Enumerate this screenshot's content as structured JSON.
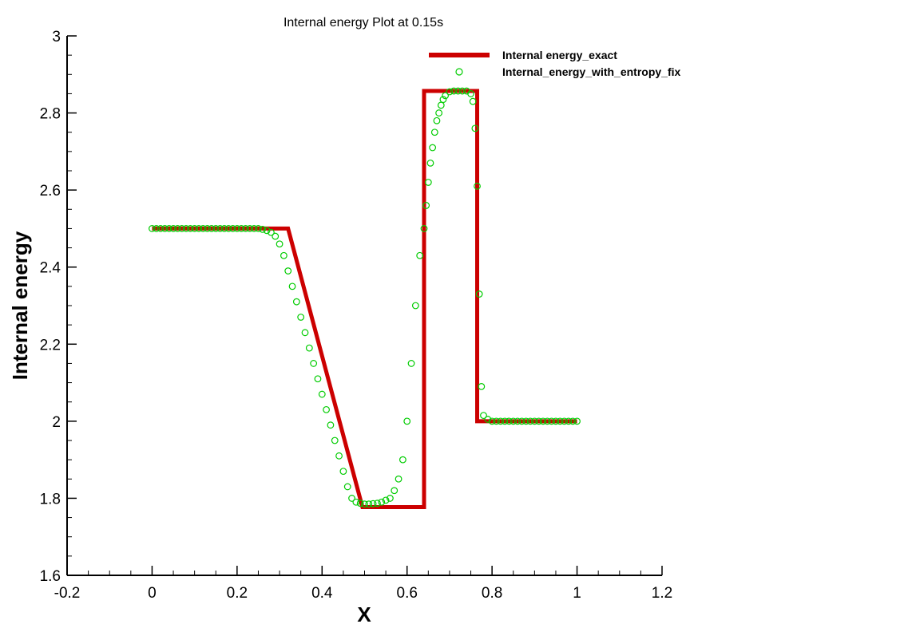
{
  "chart_data": {
    "type": "scatter",
    "title": "Internal energy Plot at 0.15s",
    "xlabel": "X",
    "ylabel": "Internal energy",
    "xlim": [
      -0.2,
      1.2
    ],
    "ylim": [
      1.6,
      3.0
    ],
    "x_ticks": [
      "-0.2",
      "0",
      "0.2",
      "0.4",
      "0.6",
      "0.8",
      "1",
      "1.2"
    ],
    "y_ticks": [
      "1.6",
      "1.8",
      "2",
      "2.2",
      "2.4",
      "2.6",
      "2.8",
      "3"
    ],
    "grid": false,
    "legend_position": "top-right",
    "series": [
      {
        "name": "Internal energy_exact",
        "style": "line",
        "color": "#cc0000",
        "x": [
          0,
          0.32,
          0.495,
          0.64,
          0.64,
          0.765,
          0.765,
          1.0
        ],
        "y": [
          2.5,
          2.5,
          1.777,
          1.777,
          2.857,
          2.857,
          2.0,
          2.0
        ]
      },
      {
        "name": "Internal_energy_with_entropy_fix",
        "style": "open-circle",
        "color": "#00cc00",
        "x": [
          0.0,
          0.01,
          0.02,
          0.03,
          0.04,
          0.05,
          0.06,
          0.07,
          0.08,
          0.09,
          0.1,
          0.11,
          0.12,
          0.13,
          0.14,
          0.15,
          0.16,
          0.17,
          0.18,
          0.19,
          0.2,
          0.21,
          0.22,
          0.23,
          0.24,
          0.25,
          0.26,
          0.27,
          0.28,
          0.29,
          0.3,
          0.31,
          0.32,
          0.33,
          0.34,
          0.35,
          0.36,
          0.37,
          0.38,
          0.39,
          0.4,
          0.41,
          0.42,
          0.43,
          0.44,
          0.45,
          0.46,
          0.47,
          0.48,
          0.49,
          0.5,
          0.51,
          0.52,
          0.53,
          0.54,
          0.55,
          0.56,
          0.57,
          0.58,
          0.59,
          0.6,
          0.61,
          0.62,
          0.63,
          0.64,
          0.645,
          0.65,
          0.655,
          0.66,
          0.665,
          0.67,
          0.675,
          0.68,
          0.685,
          0.69,
          0.7,
          0.71,
          0.72,
          0.73,
          0.74,
          0.75,
          0.755,
          0.76,
          0.765,
          0.77,
          0.775,
          0.78,
          0.79,
          0.8,
          0.81,
          0.82,
          0.83,
          0.84,
          0.85,
          0.86,
          0.87,
          0.88,
          0.89,
          0.9,
          0.91,
          0.92,
          0.93,
          0.94,
          0.95,
          0.96,
          0.97,
          0.98,
          0.99,
          1.0
        ],
        "y": [
          2.5,
          2.5,
          2.5,
          2.5,
          2.5,
          2.5,
          2.5,
          2.5,
          2.5,
          2.5,
          2.5,
          2.5,
          2.5,
          2.5,
          2.5,
          2.5,
          2.5,
          2.5,
          2.5,
          2.5,
          2.5,
          2.5,
          2.5,
          2.5,
          2.5,
          2.5,
          2.498,
          2.495,
          2.49,
          2.48,
          2.46,
          2.43,
          2.39,
          2.35,
          2.31,
          2.27,
          2.23,
          2.19,
          2.15,
          2.11,
          2.07,
          2.03,
          1.99,
          1.95,
          1.91,
          1.87,
          1.83,
          1.8,
          1.79,
          1.787,
          1.785,
          1.785,
          1.786,
          1.787,
          1.79,
          1.795,
          1.8,
          1.82,
          1.85,
          1.9,
          2.0,
          2.15,
          2.3,
          2.43,
          2.5,
          2.56,
          2.62,
          2.67,
          2.71,
          2.75,
          2.78,
          2.8,
          2.82,
          2.835,
          2.845,
          2.855,
          2.857,
          2.857,
          2.857,
          2.857,
          2.85,
          2.83,
          2.76,
          2.61,
          2.33,
          2.09,
          2.015,
          2.005,
          2.0,
          2.0,
          2.0,
          2.0,
          2.0,
          2.0,
          2.0,
          2.0,
          2.0,
          2.0,
          2.0,
          2.0,
          2.0,
          2.0,
          2.0,
          2.0,
          2.0,
          2.0,
          2.0,
          2.0,
          2.0
        ]
      }
    ]
  },
  "colors": {
    "exact": "#cc0000",
    "numerical": "#00cc00",
    "axis": "#000000"
  }
}
